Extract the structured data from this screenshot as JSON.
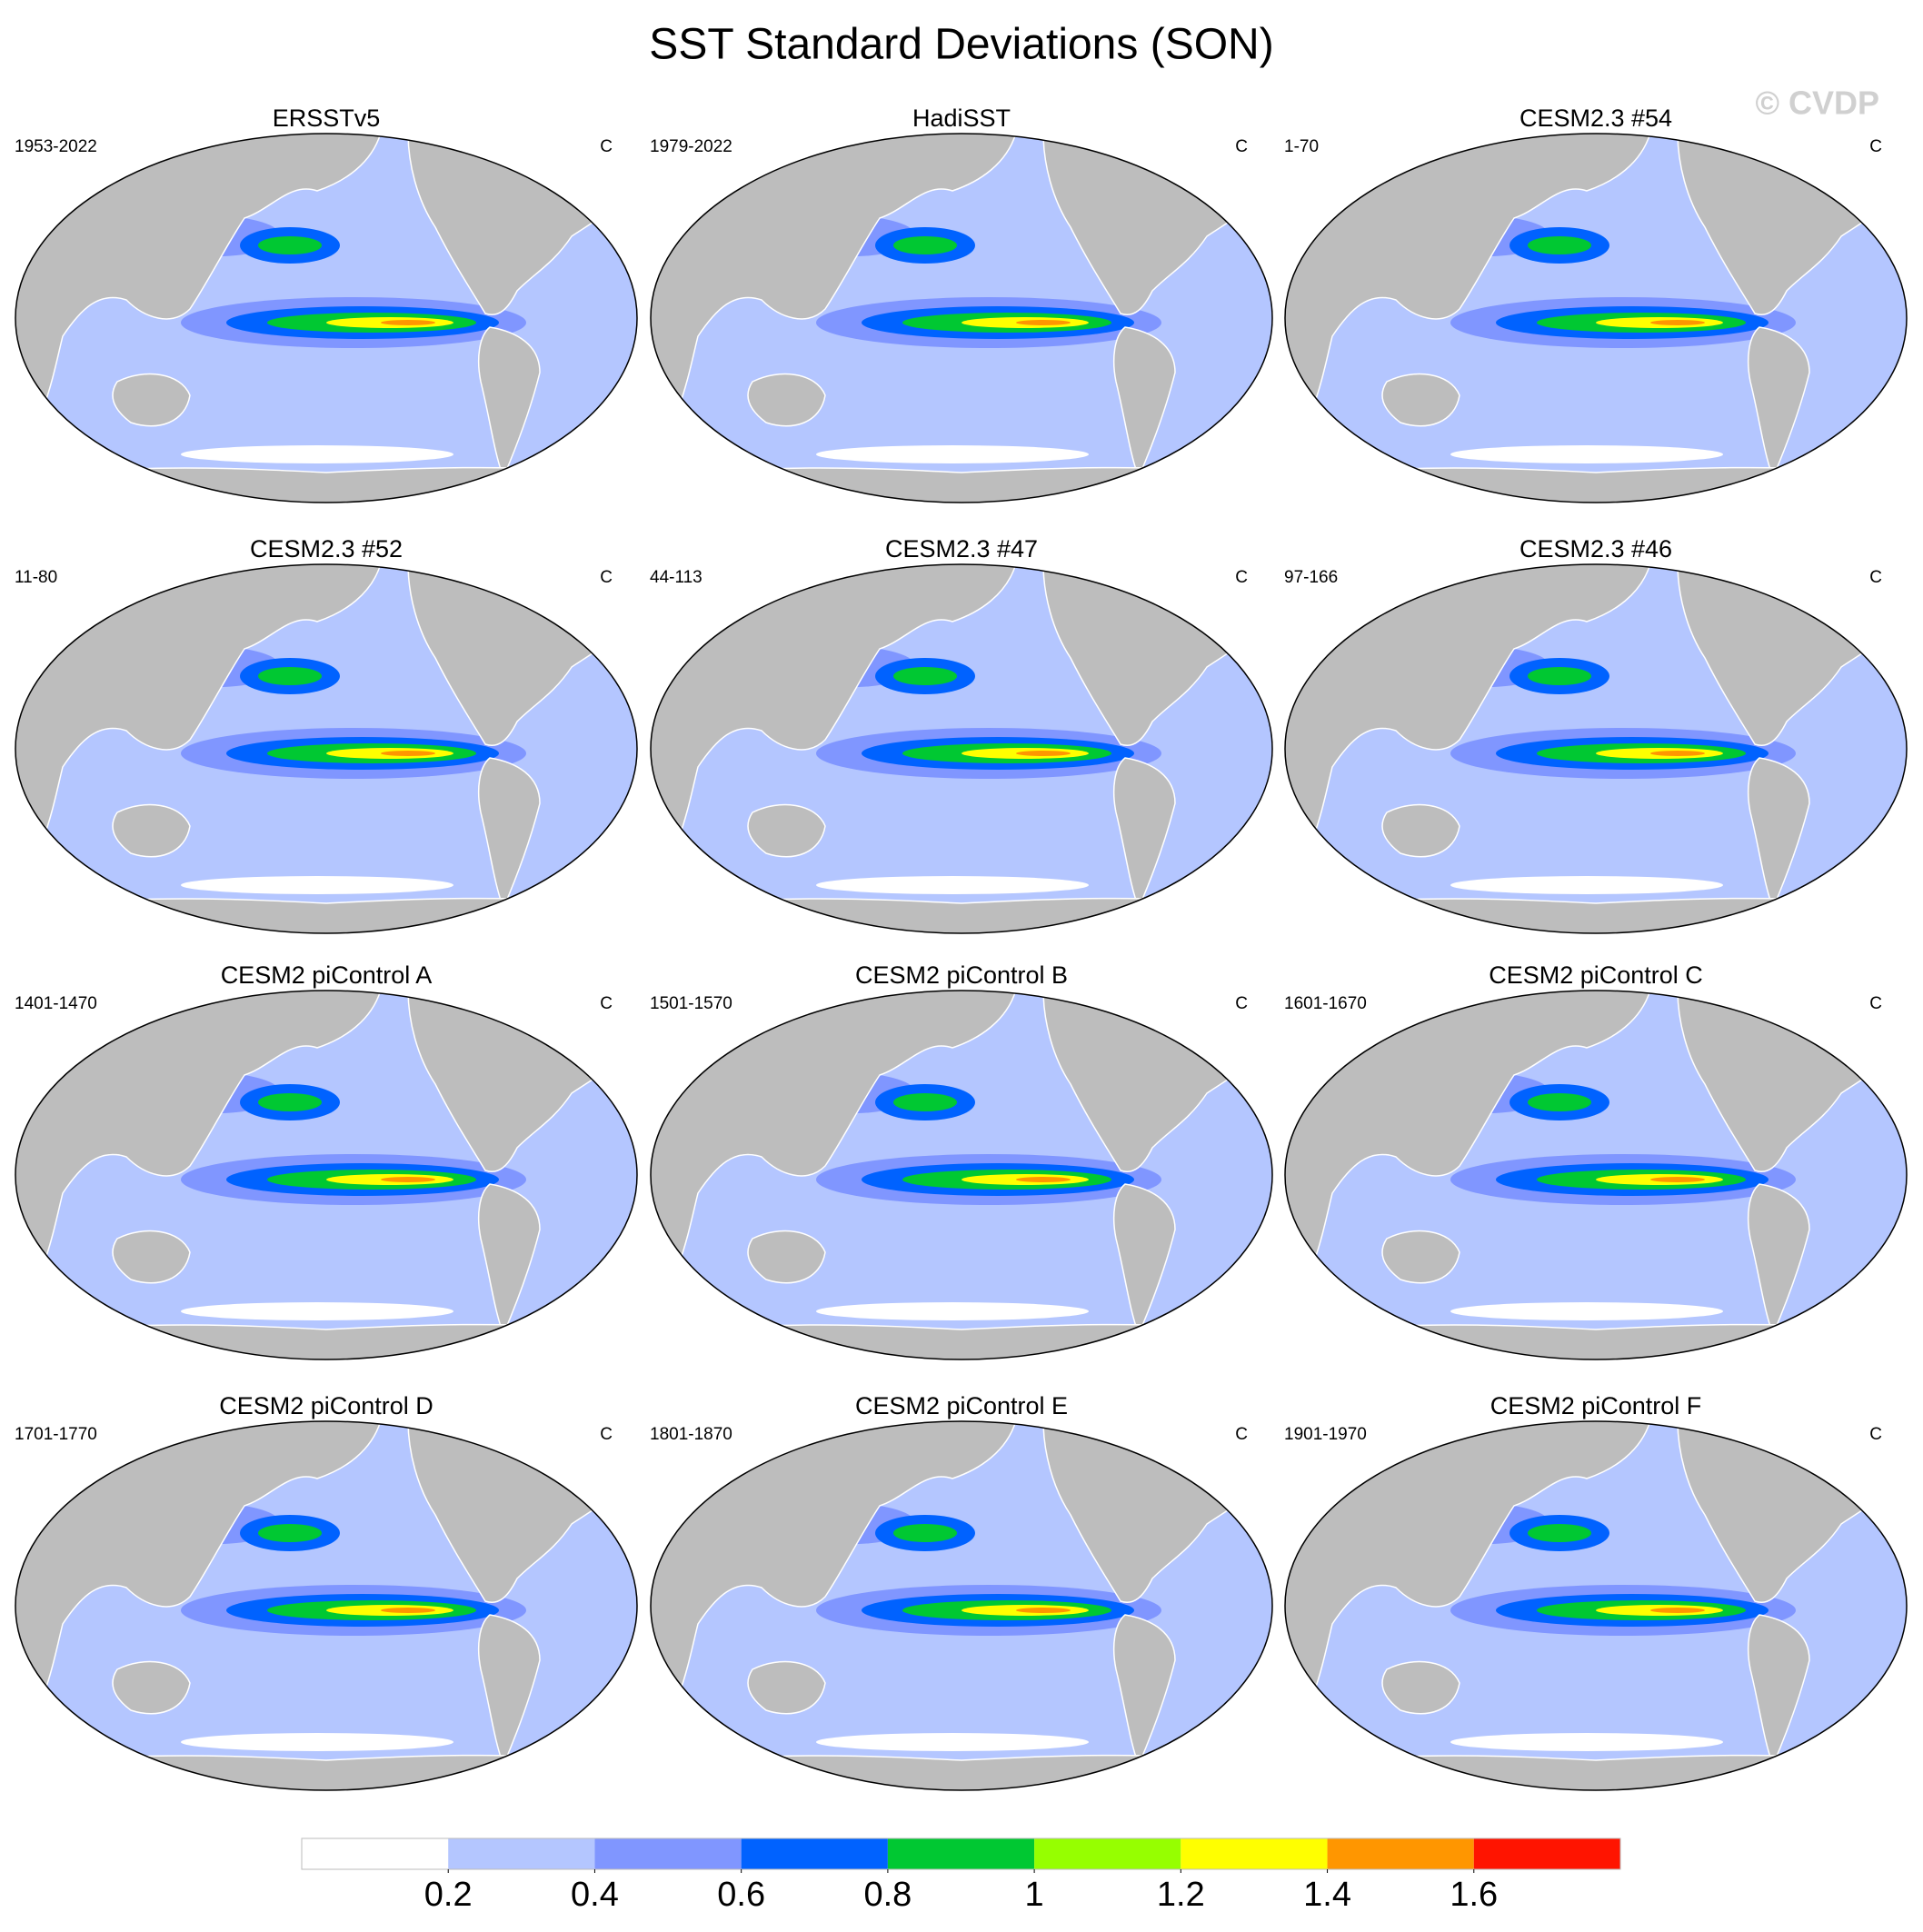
{
  "title": "SST Standard Deviations (SON)",
  "watermark": "© CVDP",
  "panels": [
    {
      "title": "ERSSTv5",
      "period": "1953-2022",
      "units": "C"
    },
    {
      "title": "HadiSST",
      "period": "1979-2022",
      "units": "C"
    },
    {
      "title": "CESM2.3 #54",
      "period": "1-70",
      "units": "C"
    },
    {
      "title": "CESM2.3 #52",
      "period": "11-80",
      "units": "C"
    },
    {
      "title": "CESM2.3 #47",
      "period": "44-113",
      "units": "C"
    },
    {
      "title": "CESM2.3 #46",
      "period": "97-166",
      "units": "C"
    },
    {
      "title": "CESM2 piControl A",
      "period": "1401-1470",
      "units": "C"
    },
    {
      "title": "CESM2 piControl B",
      "period": "1501-1570",
      "units": "C"
    },
    {
      "title": "CESM2 piControl C",
      "period": "1601-1670",
      "units": "C"
    },
    {
      "title": "CESM2 piControl D",
      "period": "1701-1770",
      "units": "C"
    },
    {
      "title": "CESM2 piControl E",
      "period": "1801-1870",
      "units": "C"
    },
    {
      "title": "CESM2 piControl F",
      "period": "1901-1970",
      "units": "C"
    }
  ],
  "colorbar": {
    "levels": [
      0.2,
      0.4,
      0.6,
      0.8,
      1,
      1.2,
      1.4,
      1.6
    ],
    "colors": [
      "#ffffff",
      "#b4c6ff",
      "#8096ff",
      "#0062ff",
      "#00c832",
      "#96ff00",
      "#ffff00",
      "#ff9600",
      "#ff1400"
    ]
  }
}
